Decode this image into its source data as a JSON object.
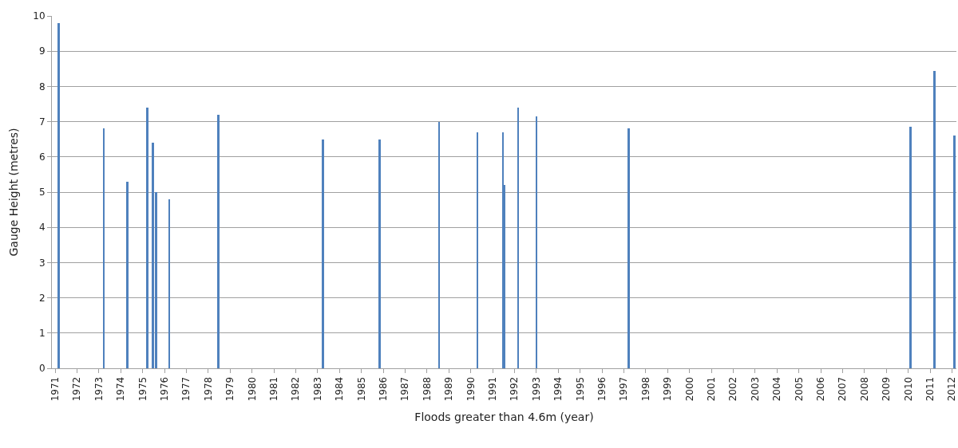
{
  "chart_data": {
    "type": "bar",
    "xlabel": "Floods greater than 4.6m (year)",
    "ylabel": "Gauge Height (metres)",
    "x": [
      1971.15,
      1973.22,
      1974.31,
      1975.22,
      1975.48,
      1975.62,
      1976.21,
      1978.47,
      1983.24,
      1985.82,
      1988.55,
      1990.3,
      1991.47,
      1991.54,
      1992.16,
      1993.0,
      1997.22,
      2010.11,
      2011.2,
      2012.11
    ],
    "values": [
      9.8,
      6.8,
      5.3,
      7.4,
      6.4,
      5.0,
      4.8,
      7.2,
      6.5,
      6.5,
      7.0,
      6.7,
      6.7,
      5.2,
      7.4,
      7.15,
      6.8,
      6.85,
      8.45,
      6.6
    ],
    "color": "#4f81bd",
    "xlim": [
      1970.85,
      2012.2
    ],
    "xticks": [
      1971,
      1972,
      1973,
      1974,
      1975,
      1976,
      1977,
      1978,
      1979,
      1980,
      1981,
      1982,
      1983,
      1984,
      1985,
      1986,
      1987,
      1988,
      1989,
      1990,
      1991,
      1992,
      1993,
      1994,
      1995,
      1996,
      1997,
      1998,
      1999,
      2000,
      2001,
      2002,
      2003,
      2004,
      2005,
      2006,
      2007,
      2008,
      2009,
      2010,
      2011,
      2012
    ],
    "ylim": [
      0,
      10
    ],
    "yticks": [
      0,
      1,
      2,
      3,
      4,
      5,
      6,
      7,
      8,
      9,
      10
    ],
    "grid": "y"
  }
}
